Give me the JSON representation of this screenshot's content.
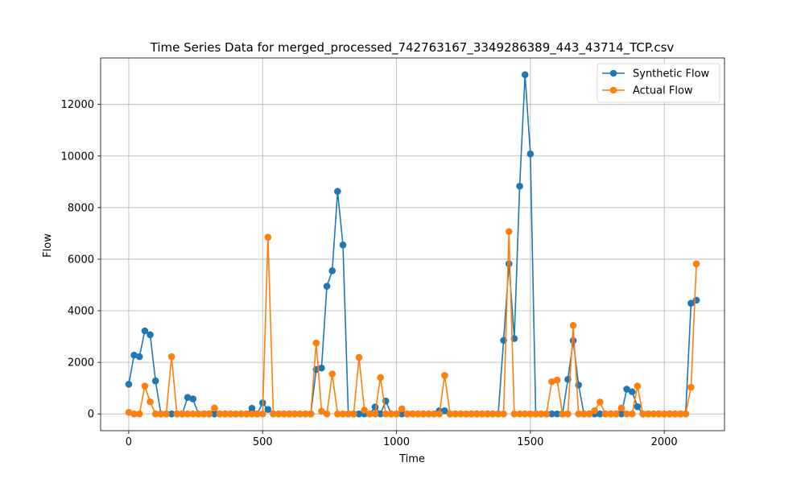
{
  "chart_data": {
    "type": "line",
    "title": "Time Series Data for merged_processed_742763167_3349286389_443_43714_TCP.csv",
    "xlabel": "Time",
    "ylabel": "Flow",
    "xlim": [
      -105,
      2225
    ],
    "ylim": [
      -650,
      13800
    ],
    "xticks": [
      0,
      500,
      1000,
      1500,
      2000
    ],
    "yticks": [
      0,
      2000,
      4000,
      6000,
      8000,
      10000,
      12000
    ],
    "grid": true,
    "legend_position": "top-right",
    "x": [
      0,
      20,
      40,
      60,
      80,
      100,
      120,
      140,
      160,
      180,
      200,
      220,
      240,
      260,
      280,
      300,
      320,
      340,
      360,
      380,
      400,
      420,
      440,
      460,
      480,
      500,
      520,
      540,
      560,
      580,
      600,
      620,
      640,
      660,
      680,
      700,
      720,
      740,
      760,
      780,
      800,
      820,
      840,
      860,
      880,
      900,
      920,
      940,
      960,
      980,
      1000,
      1020,
      1040,
      1060,
      1080,
      1100,
      1120,
      1140,
      1160,
      1180,
      1200,
      1220,
      1240,
      1260,
      1280,
      1300,
      1320,
      1340,
      1360,
      1380,
      1400,
      1420,
      1440,
      1460,
      1480,
      1500,
      1520,
      1540,
      1560,
      1580,
      1600,
      1620,
      1640,
      1660,
      1680,
      1700,
      1720,
      1740,
      1760,
      1780,
      1800,
      1820,
      1840,
      1860,
      1880,
      1900,
      1920,
      1940,
      1960,
      1980,
      2000,
      2020,
      2040,
      2060,
      2080,
      2100,
      2120
    ],
    "series": [
      {
        "name": "Synthetic Flow",
        "color": "#1f77b4",
        "values": [
          1150,
          2280,
          2220,
          3220,
          3070,
          1280,
          0,
          0,
          0,
          0,
          0,
          640,
          580,
          0,
          0,
          0,
          0,
          0,
          0,
          0,
          0,
          0,
          0,
          220,
          0,
          430,
          170,
          0,
          0,
          0,
          0,
          0,
          0,
          0,
          0,
          1720,
          1780,
          4950,
          5550,
          8630,
          6550,
          0,
          0,
          0,
          0,
          0,
          270,
          0,
          500,
          0,
          0,
          0,
          0,
          0,
          0,
          0,
          0,
          0,
          120,
          120,
          0,
          0,
          0,
          0,
          0,
          0,
          0,
          0,
          0,
          0,
          2850,
          5820,
          2920,
          8830,
          13150,
          10080,
          0,
          0,
          0,
          0,
          0,
          0,
          1340,
          2840,
          1120,
          0,
          0,
          0,
          0,
          0,
          0,
          0,
          0,
          960,
          860,
          280,
          0,
          0,
          0,
          0,
          0,
          0,
          0,
          0,
          0,
          4290,
          4410
        ]
      },
      {
        "name": "Actual Flow",
        "color": "#ff7f0e",
        "values": [
          60,
          0,
          0,
          1080,
          470,
          0,
          0,
          0,
          2220,
          0,
          0,
          0,
          0,
          0,
          0,
          0,
          230,
          0,
          0,
          0,
          0,
          0,
          0,
          0,
          0,
          0,
          6850,
          0,
          0,
          0,
          0,
          0,
          0,
          0,
          0,
          2750,
          100,
          0,
          1550,
          0,
          0,
          0,
          0,
          2190,
          150,
          0,
          0,
          1410,
          0,
          0,
          0,
          200,
          0,
          0,
          0,
          0,
          0,
          0,
          0,
          1490,
          0,
          0,
          0,
          0,
          0,
          0,
          0,
          0,
          0,
          0,
          0,
          7070,
          0,
          0,
          0,
          0,
          0,
          0,
          0,
          1250,
          1310,
          0,
          0,
          3430,
          0,
          0,
          0,
          130,
          460,
          0,
          0,
          0,
          230,
          0,
          0,
          1080,
          0,
          0,
          0,
          0,
          0,
          0,
          0,
          0,
          0,
          1030,
          5820
        ]
      }
    ]
  }
}
